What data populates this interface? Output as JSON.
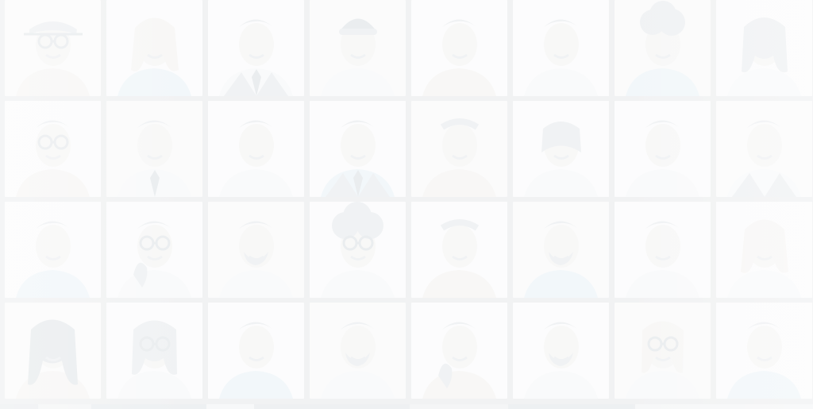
{
  "portrait_grid": {
    "tiles": [
      {
        "icon": "person-glasses-hat"
      },
      {
        "icon": "person-long-hair"
      },
      {
        "icon": "person-suit-tie"
      },
      {
        "icon": "person-beanie"
      },
      {
        "icon": "person-woman-short-hair"
      },
      {
        "icon": "person-short-hair"
      },
      {
        "icon": "person-curly-hair"
      },
      {
        "icon": "person-woman-dark-hair"
      },
      {
        "icon": "person-glasses"
      },
      {
        "icon": "person-shirt-tie"
      },
      {
        "icon": "person-smiling"
      },
      {
        "icon": "person-suit-tie"
      },
      {
        "icon": "person-older-man"
      },
      {
        "icon": "person-older-woman"
      },
      {
        "icon": "person-smiling"
      },
      {
        "icon": "person-older-suit"
      },
      {
        "icon": "person-smiling"
      },
      {
        "icon": "person-glasses-hand"
      },
      {
        "icon": "person-beard"
      },
      {
        "icon": "person-curly-glasses"
      },
      {
        "icon": "person-older-man"
      },
      {
        "icon": "person-beard"
      },
      {
        "icon": "person-smiling"
      },
      {
        "icon": "person-long-hair"
      },
      {
        "icon": "person-long-dark-hair"
      },
      {
        "icon": "person-glasses-long-hair"
      },
      {
        "icon": "person-short-hair"
      },
      {
        "icon": "person-beard"
      },
      {
        "icon": "person-hand-chin"
      },
      {
        "icon": "person-beard"
      },
      {
        "icon": "person-glasses-blonde"
      },
      {
        "icon": "person-short-hair"
      }
    ]
  },
  "colors": {
    "background": "#f1f2f3",
    "tile_light": "#f6f7f8",
    "tile_mid": "#edf0f2",
    "ink": "#d8dde1",
    "ink_dark": "#c9d0d6",
    "accent_blue": "#dce9f2",
    "accent_warm": "#eceae6"
  }
}
